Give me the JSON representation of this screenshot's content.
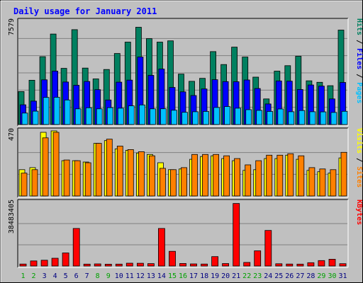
{
  "chart_data": {
    "type": "bar",
    "title": "Daily usage for January 2011",
    "categories": [
      "1",
      "2",
      "3",
      "4",
      "5",
      "6",
      "7",
      "8",
      "9",
      "10",
      "11",
      "12",
      "13",
      "14",
      "15",
      "16",
      "17",
      "18",
      "19",
      "20",
      "21",
      "22",
      "23",
      "24",
      "25",
      "26",
      "27",
      "28",
      "29",
      "30",
      "31"
    ],
    "weekend_days": [
      "1",
      "2",
      "8",
      "9",
      "15",
      "16",
      "22",
      "23",
      "29",
      "30"
    ],
    "panels": [
      {
        "name": "pages-files-hits",
        "ymax_label": "7579",
        "ymax": 7579,
        "right_labels": [
          "Hits",
          " / ",
          "Files",
          " / ",
          "Pages"
        ],
        "series": [
          {
            "name": "Hits",
            "color": "#008060",
            "values": [
              2420,
              3250,
              4980,
              6640,
              4120,
              6960,
              4140,
              3350,
              4040,
              5210,
              6050,
              7140,
              6300,
              6050,
              6140,
              3700,
              3170,
              3390,
              5350,
              4400,
              5680,
              4950,
              3480,
              1880,
              3920,
              4320,
              5010,
              3210,
              3100,
              2850,
              6930
            ]
          },
          {
            "name": "Files",
            "color": "#0000ff",
            "values": [
              1450,
              1720,
              3280,
              3920,
              3120,
              2880,
              3160,
              2560,
              1800,
              3110,
              3260,
              4950,
              3610,
              4070,
              2720,
              2400,
              2130,
              2610,
              3290,
              3150,
              3140,
              3270,
              2640,
              1510,
              3200,
              3180,
              2570,
              2900,
              2820,
              1880,
              3090
            ]
          },
          {
            "name": "Pages",
            "color": "#00c0ff",
            "values": [
              840,
              980,
              1990,
              2000,
              1800,
              1150,
              1230,
              1150,
              1240,
              1200,
              1370,
              1440,
              1150,
              1160,
              1050,
              900,
              940,
              960,
              1250,
              1320,
              1200,
              1090,
              1040,
              960,
              1140,
              940,
              1030,
              940,
              930,
              890,
              970
            ]
          }
        ]
      },
      {
        "name": "visits-sites",
        "ymax_label": "470",
        "ymax": 470,
        "right_labels": [
          "Visits",
          " / ",
          "Sites"
        ],
        "series": [
          {
            "name": "Visits",
            "color": "#ffff00",
            "values": [
              190,
              205,
              460,
              470,
              255,
              255,
              245,
              380,
              400,
              340,
              330,
              310,
              300,
              240,
              190,
              195,
              265,
              285,
              290,
              270,
              255,
              185,
              190,
              270,
              270,
              295,
              265,
              185,
              175,
              165,
              275
            ]
          },
          {
            "name": "Sites",
            "color": "#ff8000",
            "values": [
              165,
              190,
              420,
              460,
              260,
              255,
              240,
              380,
              410,
              360,
              335,
              320,
              290,
              200,
              190,
              205,
              300,
              300,
              300,
              290,
              270,
              225,
              255,
              295,
              295,
              305,
              290,
              205,
              195,
              190,
              315
            ]
          }
        ]
      },
      {
        "name": "kbytes",
        "ymax_label": "38483405",
        "ymax": 38483405,
        "right_labels": [
          "KBytes"
        ],
        "series": [
          {
            "name": "KBytes",
            "color": "#ff0000",
            "values": [
              1200000,
              3100000,
              3500000,
              4700000,
              7900000,
              22700000,
              1150000,
              1300000,
              1100000,
              1150000,
              1700000,
              1650000,
              1450000,
              22700000,
              8900000,
              1550000,
              1300000,
              1200000,
              5700000,
              1500000,
              37800000,
              2200000,
              9200000,
              21500000,
              1350000,
              1200000,
              1150000,
              2000000,
              3300000,
              4100000,
              1400000
            ]
          }
        ]
      }
    ]
  },
  "colors": {
    "background": "#c0c0c0",
    "plot_area": "#c0c0c0",
    "title": "#0000ff",
    "axis_label": "#000000",
    "weekday_label": "#000080",
    "weekend_label": "#00a000",
    "grid": "#808080"
  }
}
